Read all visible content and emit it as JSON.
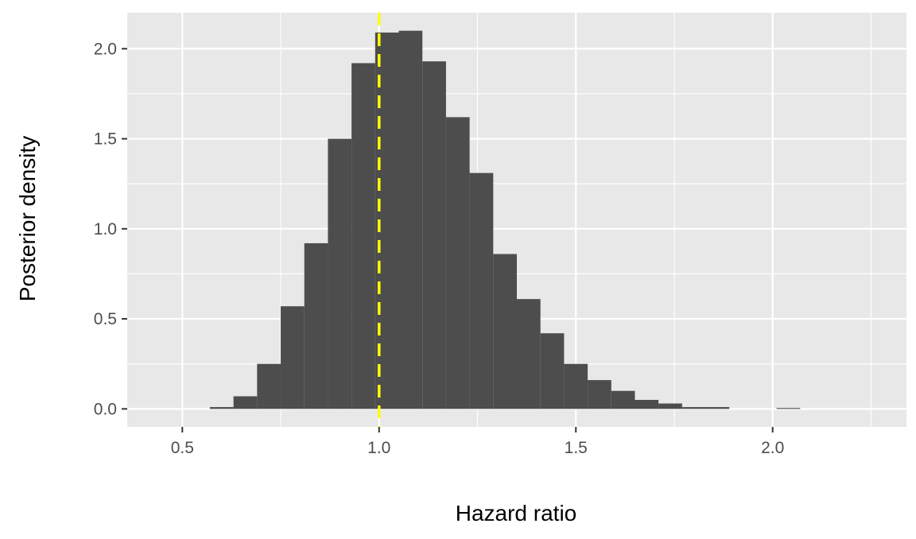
{
  "chart_data": {
    "type": "histogram",
    "title": "",
    "xlabel": "Hazard ratio",
    "ylabel": "Posterior density",
    "xlim": [
      0.36,
      2.34
    ],
    "ylim": [
      -0.1,
      2.2
    ],
    "x_ticks": [
      {
        "value": 0.5,
        "label": "0.5"
      },
      {
        "value": 1.0,
        "label": "1.0"
      },
      {
        "value": 1.5,
        "label": "1.5"
      },
      {
        "value": 2.0,
        "label": "2.0"
      }
    ],
    "x_minor_ticks": [
      0.75,
      1.25,
      1.75,
      2.25
    ],
    "y_ticks": [
      {
        "value": 0.0,
        "label": "0.0"
      },
      {
        "value": 0.5,
        "label": "0.5"
      },
      {
        "value": 1.0,
        "label": "1.0"
      },
      {
        "value": 1.5,
        "label": "1.5"
      },
      {
        "value": 2.0,
        "label": "2.0"
      }
    ],
    "y_minor_ticks": [
      0.25,
      0.75,
      1.25,
      1.75
    ],
    "bin_edges": [
      0.57,
      0.63,
      0.69,
      0.75,
      0.81,
      0.87,
      0.93,
      0.99,
      1.05,
      1.11,
      1.17,
      1.23,
      1.29,
      1.35,
      1.41,
      1.47,
      1.53,
      1.59,
      1.65,
      1.71,
      1.77,
      1.83,
      1.89,
      1.95,
      2.01,
      2.07
    ],
    "values": [
      0.01,
      0.07,
      0.25,
      0.57,
      0.92,
      1.5,
      1.92,
      2.09,
      2.1,
      1.93,
      1.62,
      1.31,
      0.86,
      0.61,
      0.42,
      0.25,
      0.16,
      0.1,
      0.05,
      0.03,
      0.01,
      0.01,
      0.0,
      0.0,
      0.005
    ],
    "reference_line": {
      "x": 1.0,
      "style": "dashed",
      "color": "#ffff00"
    },
    "bar_color": "#4d4d4d",
    "panel_background": "#e8e8e8",
    "grid": true,
    "grid_color": "#ffffff"
  }
}
